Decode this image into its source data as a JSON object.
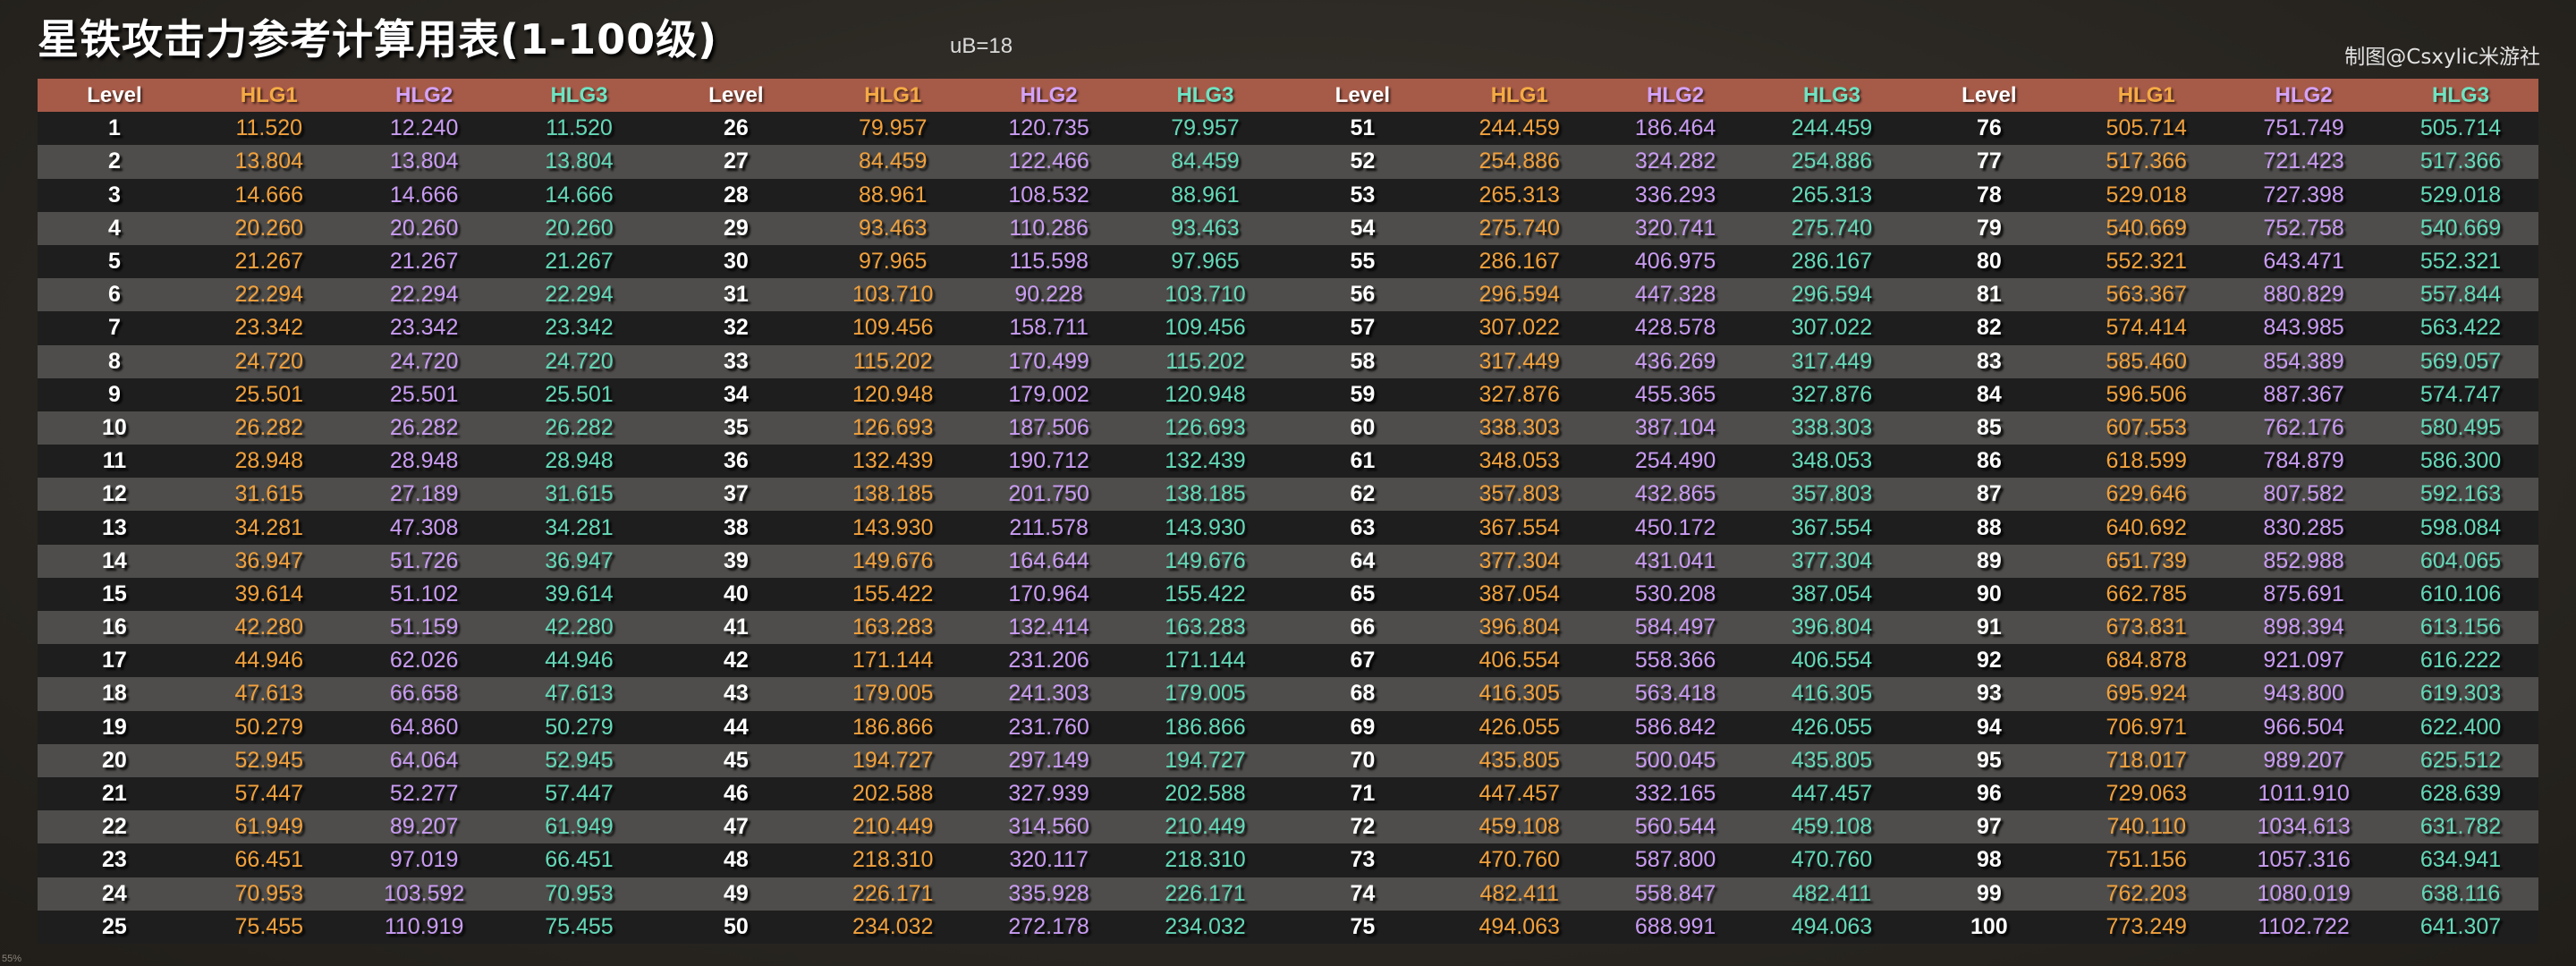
{
  "title": "星铁攻击力参考计算用表(1-100级)",
  "ub": "uB=18",
  "credit": "制图@Csxylic米游社",
  "corner": "55%",
  "colors": {
    "header_bg": "#a65a48",
    "level": "#ffffff",
    "hlg1": "#f2a13c",
    "hlg2": "#c99cf2",
    "hlg3": "#64d9b8"
  },
  "headers": [
    "Level",
    "HLG1",
    "HLG2",
    "HLG3"
  ],
  "blocks": [
    [
      [
        "1",
        "11.520",
        "12.240",
        "11.520"
      ],
      [
        "2",
        "13.804",
        "13.804",
        "13.804"
      ],
      [
        "3",
        "14.666",
        "14.666",
        "14.666"
      ],
      [
        "4",
        "20.260",
        "20.260",
        "20.260"
      ],
      [
        "5",
        "21.267",
        "21.267",
        "21.267"
      ],
      [
        "6",
        "22.294",
        "22.294",
        "22.294"
      ],
      [
        "7",
        "23.342",
        "23.342",
        "23.342"
      ],
      [
        "8",
        "24.720",
        "24.720",
        "24.720"
      ],
      [
        "9",
        "25.501",
        "25.501",
        "25.501"
      ],
      [
        "10",
        "26.282",
        "26.282",
        "26.282"
      ],
      [
        "11",
        "28.948",
        "28.948",
        "28.948"
      ],
      [
        "12",
        "31.615",
        "27.189",
        "31.615"
      ],
      [
        "13",
        "34.281",
        "47.308",
        "34.281"
      ],
      [
        "14",
        "36.947",
        "51.726",
        "36.947"
      ],
      [
        "15",
        "39.614",
        "51.102",
        "39.614"
      ],
      [
        "16",
        "42.280",
        "51.159",
        "42.280"
      ],
      [
        "17",
        "44.946",
        "62.026",
        "44.946"
      ],
      [
        "18",
        "47.613",
        "66.658",
        "47.613"
      ],
      [
        "19",
        "50.279",
        "64.860",
        "50.279"
      ],
      [
        "20",
        "52.945",
        "64.064",
        "52.945"
      ],
      [
        "21",
        "57.447",
        "52.277",
        "57.447"
      ],
      [
        "22",
        "61.949",
        "89.207",
        "61.949"
      ],
      [
        "23",
        "66.451",
        "97.019",
        "66.451"
      ],
      [
        "24",
        "70.953",
        "103.592",
        "70.953"
      ],
      [
        "25",
        "75.455",
        "110.919",
        "75.455"
      ]
    ],
    [
      [
        "26",
        "79.957",
        "120.735",
        "79.957"
      ],
      [
        "27",
        "84.459",
        "122.466",
        "84.459"
      ],
      [
        "28",
        "88.961",
        "108.532",
        "88.961"
      ],
      [
        "29",
        "93.463",
        "110.286",
        "93.463"
      ],
      [
        "30",
        "97.965",
        "115.598",
        "97.965"
      ],
      [
        "31",
        "103.710",
        "90.228",
        "103.710"
      ],
      [
        "32",
        "109.456",
        "158.711",
        "109.456"
      ],
      [
        "33",
        "115.202",
        "170.499",
        "115.202"
      ],
      [
        "34",
        "120.948",
        "179.002",
        "120.948"
      ],
      [
        "35",
        "126.693",
        "187.506",
        "126.693"
      ],
      [
        "36",
        "132.439",
        "190.712",
        "132.439"
      ],
      [
        "37",
        "138.185",
        "201.750",
        "138.185"
      ],
      [
        "38",
        "143.930",
        "211.578",
        "143.930"
      ],
      [
        "39",
        "149.676",
        "164.644",
        "149.676"
      ],
      [
        "40",
        "155.422",
        "170.964",
        "155.422"
      ],
      [
        "41",
        "163.283",
        "132.414",
        "163.283"
      ],
      [
        "42",
        "171.144",
        "231.206",
        "171.144"
      ],
      [
        "43",
        "179.005",
        "241.303",
        "179.005"
      ],
      [
        "44",
        "186.866",
        "231.760",
        "186.866"
      ],
      [
        "45",
        "194.727",
        "297.149",
        "194.727"
      ],
      [
        "46",
        "202.588",
        "327.939",
        "202.588"
      ],
      [
        "47",
        "210.449",
        "314.560",
        "210.449"
      ],
      [
        "48",
        "218.310",
        "320.117",
        "218.310"
      ],
      [
        "49",
        "226.171",
        "335.928",
        "226.171"
      ],
      [
        "50",
        "234.032",
        "272.178",
        "234.032"
      ]
    ],
    [
      [
        "51",
        "244.459",
        "186.464",
        "244.459"
      ],
      [
        "52",
        "254.886",
        "324.282",
        "254.886"
      ],
      [
        "53",
        "265.313",
        "336.293",
        "265.313"
      ],
      [
        "54",
        "275.740",
        "320.741",
        "275.740"
      ],
      [
        "55",
        "286.167",
        "406.975",
        "286.167"
      ],
      [
        "56",
        "296.594",
        "447.328",
        "296.594"
      ],
      [
        "57",
        "307.022",
        "428.578",
        "307.022"
      ],
      [
        "58",
        "317.449",
        "436.269",
        "317.449"
      ],
      [
        "59",
        "327.876",
        "455.365",
        "327.876"
      ],
      [
        "60",
        "338.303",
        "387.104",
        "338.303"
      ],
      [
        "61",
        "348.053",
        "254.490",
        "348.053"
      ],
      [
        "62",
        "357.803",
        "432.865",
        "357.803"
      ],
      [
        "63",
        "367.554",
        "450.172",
        "367.554"
      ],
      [
        "64",
        "377.304",
        "431.041",
        "377.304"
      ],
      [
        "65",
        "387.054",
        "530.208",
        "387.054"
      ],
      [
        "66",
        "396.804",
        "584.497",
        "396.804"
      ],
      [
        "67",
        "406.554",
        "558.366",
        "406.554"
      ],
      [
        "68",
        "416.305",
        "563.418",
        "416.305"
      ],
      [
        "69",
        "426.055",
        "586.842",
        "426.055"
      ],
      [
        "70",
        "435.805",
        "500.045",
        "435.805"
      ],
      [
        "71",
        "447.457",
        "332.165",
        "447.457"
      ],
      [
        "72",
        "459.108",
        "560.544",
        "459.108"
      ],
      [
        "73",
        "470.760",
        "587.800",
        "470.760"
      ],
      [
        "74",
        "482.411",
        "558.847",
        "482.411"
      ],
      [
        "75",
        "494.063",
        "688.991",
        "494.063"
      ]
    ],
    [
      [
        "76",
        "505.714",
        "751.749",
        "505.714"
      ],
      [
        "77",
        "517.366",
        "721.423",
        "517.366"
      ],
      [
        "78",
        "529.018",
        "727.398",
        "529.018"
      ],
      [
        "79",
        "540.669",
        "752.758",
        "540.669"
      ],
      [
        "80",
        "552.321",
        "643.471",
        "552.321"
      ],
      [
        "81",
        "563.367",
        "880.829",
        "557.844"
      ],
      [
        "82",
        "574.414",
        "843.985",
        "563.422"
      ],
      [
        "83",
        "585.460",
        "854.389",
        "569.057"
      ],
      [
        "84",
        "596.506",
        "887.367",
        "574.747"
      ],
      [
        "85",
        "607.553",
        "762.176",
        "580.495"
      ],
      [
        "86",
        "618.599",
        "784.879",
        "586.300"
      ],
      [
        "87",
        "629.646",
        "807.582",
        "592.163"
      ],
      [
        "88",
        "640.692",
        "830.285",
        "598.084"
      ],
      [
        "89",
        "651.739",
        "852.988",
        "604.065"
      ],
      [
        "90",
        "662.785",
        "875.691",
        "610.106"
      ],
      [
        "91",
        "673.831",
        "898.394",
        "613.156"
      ],
      [
        "92",
        "684.878",
        "921.097",
        "616.222"
      ],
      [
        "93",
        "695.924",
        "943.800",
        "619.303"
      ],
      [
        "94",
        "706.971",
        "966.504",
        "622.400"
      ],
      [
        "95",
        "718.017",
        "989.207",
        "625.512"
      ],
      [
        "96",
        "729.063",
        "1011.910",
        "628.639"
      ],
      [
        "97",
        "740.110",
        "1034.613",
        "631.782"
      ],
      [
        "98",
        "751.156",
        "1057.316",
        "634.941"
      ],
      [
        "99",
        "762.203",
        "1080.019",
        "638.116"
      ],
      [
        "100",
        "773.249",
        "1102.722",
        "641.307"
      ]
    ]
  ]
}
